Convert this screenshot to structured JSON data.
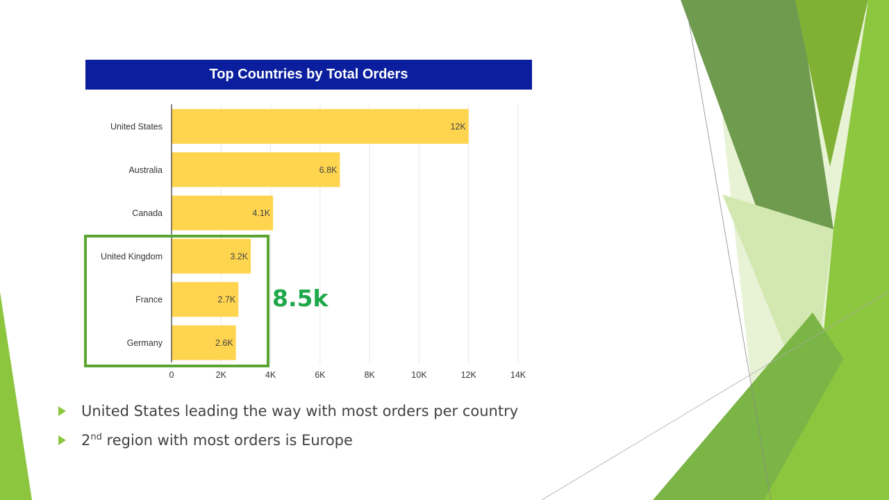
{
  "chart_data": {
    "type": "bar",
    "orientation": "horizontal",
    "title": "Top Countries by Total Orders",
    "categories": [
      "United States",
      "Australia",
      "Canada",
      "United Kingdom",
      "France",
      "Germany"
    ],
    "values": [
      12000,
      6800,
      4100,
      3200,
      2700,
      2600
    ],
    "value_labels": [
      "12K",
      "6.8K",
      "4.1K",
      "3.2K",
      "2.7K",
      "2.6K"
    ],
    "xlim": [
      0,
      14000
    ],
    "xticks": [
      0,
      2000,
      4000,
      6000,
      8000,
      10000,
      12000,
      14000
    ],
    "xtick_labels": [
      "0",
      "2K",
      "4K",
      "6K",
      "8K",
      "10K",
      "12K",
      "14K"
    ],
    "grid": true,
    "bar_color": "#ffd54f",
    "title_bg": "#0a1e9e"
  },
  "annotation": {
    "text": "8.5k",
    "highlight_color": "#5aa531",
    "text_color": "#1ea84a"
  },
  "bullets": [
    {
      "text": "United States leading the way with most orders per country"
    },
    {
      "text_pre": "2",
      "sup": "nd",
      "text_post": " region with most orders is Europe"
    }
  ],
  "colors": {
    "accent_green": "#8cc63f",
    "dark_green": "#5b8f3a"
  }
}
